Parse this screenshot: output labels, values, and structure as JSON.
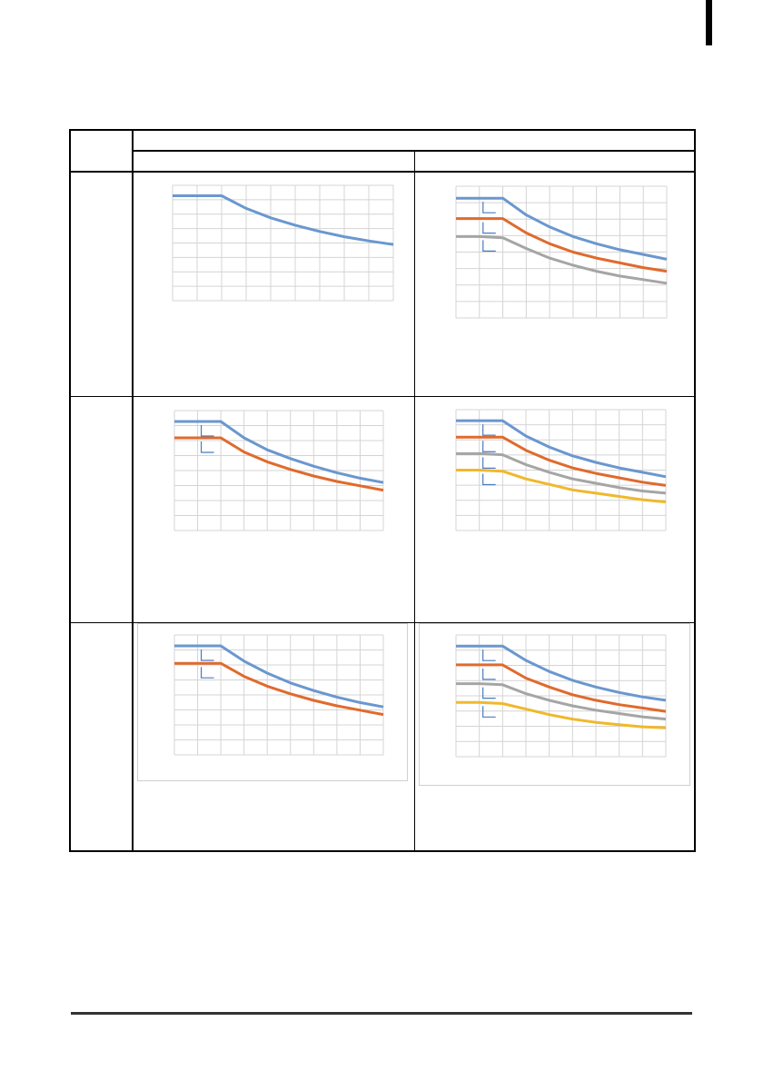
{
  "colors": {
    "series_blue": "#6a97cf",
    "series_orange": "#e06a2c",
    "series_gray": "#a5a5a5",
    "series_yellow": "#f0b82b",
    "grid": "#d4d4d4",
    "bracket": "#4a7bbf"
  },
  "chart_data": [
    {
      "type": "line",
      "series": [
        {
          "values": [
            1.0,
            1.0,
            1.0,
            0.88,
            0.79,
            0.72,
            0.66,
            0.61,
            0.57,
            0.535
          ]
        }
      ],
      "ylim": [
        0,
        1.1
      ]
    },
    {
      "type": "line",
      "series": [
        {
          "values": [
            1.0,
            1.0,
            1.0,
            0.86,
            0.76,
            0.68,
            0.62,
            0.57,
            0.53,
            0.49
          ]
        },
        {
          "values": [
            0.83,
            0.83,
            0.83,
            0.71,
            0.62,
            0.55,
            0.5,
            0.46,
            0.42,
            0.39
          ]
        },
        {
          "values": [
            0.68,
            0.68,
            0.67,
            0.58,
            0.5,
            0.44,
            0.39,
            0.35,
            0.32,
            0.29
          ]
        }
      ],
      "ylim": [
        0,
        1.1
      ]
    },
    {
      "type": "line",
      "series": [
        {
          "values": [
            1.0,
            1.0,
            1.0,
            0.85,
            0.74,
            0.66,
            0.59,
            0.53,
            0.48,
            0.44
          ]
        },
        {
          "values": [
            0.85,
            0.85,
            0.85,
            0.72,
            0.63,
            0.56,
            0.5,
            0.45,
            0.41,
            0.37
          ]
        }
      ],
      "ylim": [
        0,
        1.1
      ]
    },
    {
      "type": "line",
      "series": [
        {
          "values": [
            1.0,
            1.0,
            1.0,
            0.86,
            0.76,
            0.68,
            0.62,
            0.57,
            0.53,
            0.49
          ]
        },
        {
          "values": [
            0.85,
            0.85,
            0.85,
            0.73,
            0.64,
            0.57,
            0.52,
            0.48,
            0.44,
            0.41
          ]
        },
        {
          "values": [
            0.7,
            0.7,
            0.69,
            0.6,
            0.53,
            0.47,
            0.43,
            0.39,
            0.36,
            0.34
          ]
        },
        {
          "values": [
            0.55,
            0.55,
            0.54,
            0.47,
            0.42,
            0.37,
            0.34,
            0.31,
            0.28,
            0.26
          ]
        }
      ],
      "ylim": [
        0,
        1.1
      ]
    },
    {
      "type": "line",
      "series": [
        {
          "values": [
            1.0,
            1.0,
            1.0,
            0.86,
            0.75,
            0.66,
            0.59,
            0.53,
            0.48,
            0.44
          ]
        },
        {
          "values": [
            0.84,
            0.84,
            0.84,
            0.72,
            0.63,
            0.56,
            0.5,
            0.45,
            0.41,
            0.37
          ]
        }
      ],
      "ylim": [
        0,
        1.1
      ]
    },
    {
      "type": "line",
      "series": [
        {
          "values": [
            1.0,
            1.0,
            1.0,
            0.87,
            0.77,
            0.69,
            0.63,
            0.58,
            0.54,
            0.51
          ]
        },
        {
          "values": [
            0.83,
            0.83,
            0.83,
            0.71,
            0.63,
            0.56,
            0.51,
            0.47,
            0.44,
            0.41
          ]
        },
        {
          "values": [
            0.66,
            0.66,
            0.65,
            0.57,
            0.51,
            0.46,
            0.42,
            0.39,
            0.36,
            0.34
          ]
        },
        {
          "values": [
            0.49,
            0.49,
            0.48,
            0.43,
            0.38,
            0.34,
            0.31,
            0.29,
            0.27,
            0.26
          ]
        }
      ],
      "ylim": [
        0,
        1.1
      ]
    }
  ]
}
